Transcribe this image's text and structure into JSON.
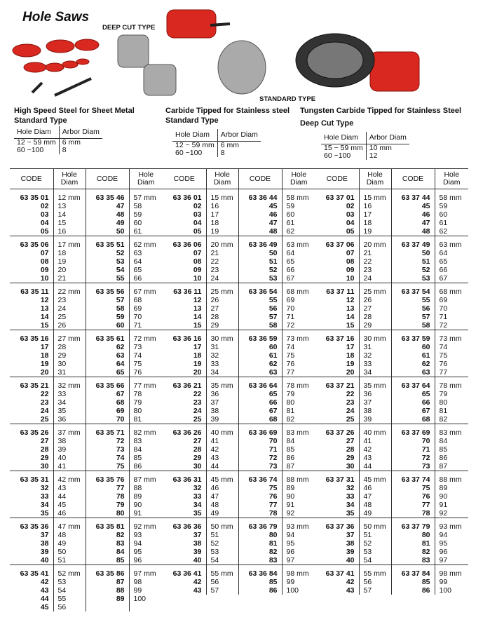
{
  "title": "Hole Saws",
  "image_labels": [
    "DEEP CUT TYPE",
    "STANDARD TYPE"
  ],
  "sections": [
    {
      "heading": [
        "High Speed Steel for Sheet Metal",
        "Standard Type"
      ],
      "spec": {
        "header": [
          "Hole Diam",
          "Arbor Diam"
        ],
        "rows": [
          [
            "12 ~ 59 mm",
            "6 mm"
          ],
          [
            "60 ~100",
            "8"
          ]
        ]
      },
      "table": {
        "header": [
          "CODE",
          "Hole Diam",
          "CODE",
          "Hole Diam"
        ],
        "groups": [
          [
            [
              "63 35 01",
              "12 mm",
              "63 35 46",
              "57 mm"
            ],
            [
              "02",
              "13",
              "47",
              "58"
            ],
            [
              "03",
              "14",
              "48",
              "59"
            ],
            [
              "04",
              "15",
              "49",
              "60"
            ],
            [
              "05",
              "16",
              "50",
              "61"
            ]
          ],
          [
            [
              "63 35 06",
              "17 mm",
              "63 35 51",
              "62 mm"
            ],
            [
              "07",
              "18",
              "52",
              "63"
            ],
            [
              "08",
              "19",
              "53",
              "64"
            ],
            [
              "09",
              "20",
              "54",
              "65"
            ],
            [
              "10",
              "21",
              "55",
              "66"
            ]
          ],
          [
            [
              "63 35 11",
              "22 mm",
              "63 35 56",
              "67 mm"
            ],
            [
              "12",
              "23",
              "57",
              "68"
            ],
            [
              "13",
              "24",
              "58",
              "69"
            ],
            [
              "14",
              "25",
              "59",
              "70"
            ],
            [
              "15",
              "26",
              "60",
              "71"
            ]
          ],
          [
            [
              "63 35 16",
              "27 mm",
              "63 35 61",
              "72 mm"
            ],
            [
              "17",
              "28",
              "62",
              "73"
            ],
            [
              "18",
              "29",
              "63",
              "74"
            ],
            [
              "19",
              "30",
              "64",
              "75"
            ],
            [
              "20",
              "31",
              "65",
              "76"
            ]
          ],
          [
            [
              "63 35 21",
              "32 mm",
              "63 35 66",
              "77 mm"
            ],
            [
              "22",
              "33",
              "67",
              "78"
            ],
            [
              "23",
              "34",
              "68",
              "79"
            ],
            [
              "24",
              "35",
              "69",
              "80"
            ],
            [
              "25",
              "36",
              "70",
              "81"
            ]
          ],
          [
            [
              "63 35 26",
              "37 mm",
              "63 35 71",
              "82 mm"
            ],
            [
              "27",
              "38",
              "72",
              "83"
            ],
            [
              "28",
              "39",
              "73",
              "84"
            ],
            [
              "29",
              "40",
              "74",
              "85"
            ],
            [
              "30",
              "41",
              "75",
              "86"
            ]
          ],
          [
            [
              "63 35 31",
              "42 mm",
              "63 35 76",
              "87 mm"
            ],
            [
              "32",
              "43",
              "77",
              "88"
            ],
            [
              "33",
              "44",
              "78",
              "89"
            ],
            [
              "34",
              "45",
              "79",
              "90"
            ],
            [
              "35",
              "46",
              "80",
              "91"
            ]
          ],
          [
            [
              "63 35 36",
              "47 mm",
              "63 35 81",
              "92 mm"
            ],
            [
              "37",
              "48",
              "82",
              "93"
            ],
            [
              "38",
              "49",
              "83",
              "94"
            ],
            [
              "39",
              "50",
              "84",
              "95"
            ],
            [
              "40",
              "51",
              "85",
              "96"
            ]
          ],
          [
            [
              "63 35 41",
              "52 mm",
              "63 35 86",
              "97 mm"
            ],
            [
              "42",
              "53",
              "87",
              "98"
            ],
            [
              "43",
              "54",
              "88",
              "99"
            ],
            [
              "44",
              "55",
              "89",
              "100"
            ],
            [
              "45",
              "56"
            ]
          ]
        ]
      }
    },
    {
      "heading": [
        "Carbide Tipped for Stainless steel",
        "Standard Type"
      ],
      "spec": {
        "header": [
          "Hole Diam",
          "Arbor Diam"
        ],
        "rows": [
          [
            "12 ~ 59 mm",
            "6 mm"
          ],
          [
            "60 ~100",
            "8"
          ]
        ]
      },
      "table": {
        "header": [
          "CODE",
          "Hole Diam",
          "CODE",
          "Hole Diam"
        ],
        "groups": [
          [
            [
              "63 36 01",
              "15 mm",
              "63 36 44",
              "58 mm"
            ],
            [
              "02",
              "16",
              "45",
              "59"
            ],
            [
              "03",
              "17",
              "46",
              "60"
            ],
            [
              "04",
              "18",
              "47",
              "61"
            ],
            [
              "05",
              "19",
              "48",
              "62"
            ]
          ],
          [
            [
              "63 36 06",
              "20 mm",
              "63 36 49",
              "63 mm"
            ],
            [
              "07",
              "21",
              "50",
              "64"
            ],
            [
              "08",
              "22",
              "51",
              "65"
            ],
            [
              "09",
              "23",
              "52",
              "66"
            ],
            [
              "10",
              "24",
              "53",
              "67"
            ]
          ],
          [
            [
              "63 36 11",
              "25 mm",
              "63 36 54",
              "68 mm"
            ],
            [
              "12",
              "26",
              "55",
              "69"
            ],
            [
              "13",
              "27",
              "56",
              "70"
            ],
            [
              "14",
              "28",
              "57",
              "71"
            ],
            [
              "15",
              "29",
              "58",
              "72"
            ]
          ],
          [
            [
              "63 36 16",
              "30 mm",
              "63 36 59",
              "73 mm"
            ],
            [
              "17",
              "31",
              "60",
              "74"
            ],
            [
              "18",
              "32",
              "61",
              "75"
            ],
            [
              "19",
              "33",
              "62",
              "76"
            ],
            [
              "20",
              "34",
              "63",
              "77"
            ]
          ],
          [
            [
              "63 36 21",
              "35 mm",
              "63 36 64",
              "78 mm"
            ],
            [
              "22",
              "36",
              "65",
              "79"
            ],
            [
              "23",
              "37",
              "66",
              "80"
            ],
            [
              "24",
              "38",
              "67",
              "81"
            ],
            [
              "25",
              "39",
              "68",
              "82"
            ]
          ],
          [
            [
              "63 36 26",
              "40 mm",
              "63 36 69",
              "83 mm"
            ],
            [
              "27",
              "41",
              "70",
              "84"
            ],
            [
              "28",
              "42",
              "71",
              "85"
            ],
            [
              "29",
              "43",
              "72",
              "86"
            ],
            [
              "30",
              "44",
              "73",
              "87"
            ]
          ],
          [
            [
              "63 36 31",
              "45 mm",
              "63 36 74",
              "88 mm"
            ],
            [
              "32",
              "46",
              "75",
              "89"
            ],
            [
              "33",
              "47",
              "76",
              "90"
            ],
            [
              "34",
              "48",
              "77",
              "91"
            ],
            [
              "35",
              "49",
              "78",
              "92"
            ]
          ],
          [
            [
              "63 36 36",
              "50 mm",
              "63 36 79",
              "93 mm"
            ],
            [
              "37",
              "51",
              "80",
              "94"
            ],
            [
              "38",
              "52",
              "81",
              "95"
            ],
            [
              "39",
              "53",
              "82",
              "96"
            ],
            [
              "40",
              "54",
              "83",
              "97"
            ]
          ],
          [
            [
              "63 36 41",
              "55 mm",
              "63 36 84",
              "98 mm"
            ],
            [
              "42",
              "56",
              "85",
              "99"
            ],
            [
              "43",
              "57",
              "86",
              "100"
            ]
          ]
        ]
      }
    },
    {
      "heading": [
        "Tungsten Carbide Tipped for Stainless Steel",
        "Deep Cut Type"
      ],
      "spec": {
        "header": [
          "Hole Diam",
          "Arbor Diam"
        ],
        "rows": [
          [
            "15 ~ 59 mm",
            "10 mm"
          ],
          [
            "60 ~100",
            "12"
          ]
        ]
      },
      "table": {
        "header": [
          "CODE",
          "Hole Diam",
          "CODE",
          "Hole Diam"
        ],
        "groups": [
          [
            [
              "63 37 01",
              "15 mm",
              "63 37 44",
              "58 mm"
            ],
            [
              "02",
              "16",
              "45",
              "59"
            ],
            [
              "03",
              "17",
              "46",
              "60"
            ],
            [
              "04",
              "18",
              "47",
              "61"
            ],
            [
              "05",
              "19",
              "48",
              "62"
            ]
          ],
          [
            [
              "63 37 06",
              "20 mm",
              "63 37 49",
              "63 mm"
            ],
            [
              "07",
              "21",
              "50",
              "64"
            ],
            [
              "08",
              "22",
              "51",
              "65"
            ],
            [
              "09",
              "23",
              "52",
              "66"
            ],
            [
              "10",
              "24",
              "53",
              "67"
            ]
          ],
          [
            [
              "63 37 11",
              "25 mm",
              "63 37 54",
              "68 mm"
            ],
            [
              "12",
              "26",
              "55",
              "69"
            ],
            [
              "13",
              "27",
              "56",
              "70"
            ],
            [
              "14",
              "28",
              "57",
              "71"
            ],
            [
              "15",
              "29",
              "58",
              "72"
            ]
          ],
          [
            [
              "63 37 16",
              "30 mm",
              "63 37 59",
              "73 mm"
            ],
            [
              "17",
              "31",
              "60",
              "74"
            ],
            [
              "18",
              "32",
              "61",
              "75"
            ],
            [
              "19",
              "33",
              "62",
              "76"
            ],
            [
              "20",
              "34",
              "63",
              "77"
            ]
          ],
          [
            [
              "63 37 21",
              "35 mm",
              "63 37 64",
              "78 mm"
            ],
            [
              "22",
              "36",
              "65",
              "79"
            ],
            [
              "23",
              "37",
              "66",
              "80"
            ],
            [
              "24",
              "38",
              "67",
              "81"
            ],
            [
              "25",
              "39",
              "68",
              "82"
            ]
          ],
          [
            [
              "63 37 26",
              "40 mm",
              "63 37 69",
              "83 mm"
            ],
            [
              "27",
              "41",
              "70",
              "84"
            ],
            [
              "28",
              "42",
              "71",
              "85"
            ],
            [
              "29",
              "43",
              "72",
              "86"
            ],
            [
              "30",
              "44",
              "73",
              "87"
            ]
          ],
          [
            [
              "63 37 31",
              "45 mm",
              "63 37 74",
              "88 mm"
            ],
            [
              "32",
              "46",
              "75",
              "89"
            ],
            [
              "33",
              "47",
              "76",
              "90"
            ],
            [
              "34",
              "48",
              "77",
              "91"
            ],
            [
              "35",
              "49",
              "78",
              "92"
            ]
          ],
          [
            [
              "63 37 36",
              "50 mm",
              "63 37 79",
              "93 mm"
            ],
            [
              "37",
              "51",
              "80",
              "94"
            ],
            [
              "38",
              "52",
              "81",
              "95"
            ],
            [
              "39",
              "53",
              "82",
              "96"
            ],
            [
              "40",
              "54",
              "83",
              "97"
            ]
          ],
          [
            [
              "63 37 41",
              "55 mm",
              "63 37 84",
              "98 mm"
            ],
            [
              "42",
              "56",
              "85",
              "99"
            ],
            [
              "43",
              "57",
              "86",
              "100"
            ]
          ]
        ]
      }
    }
  ]
}
